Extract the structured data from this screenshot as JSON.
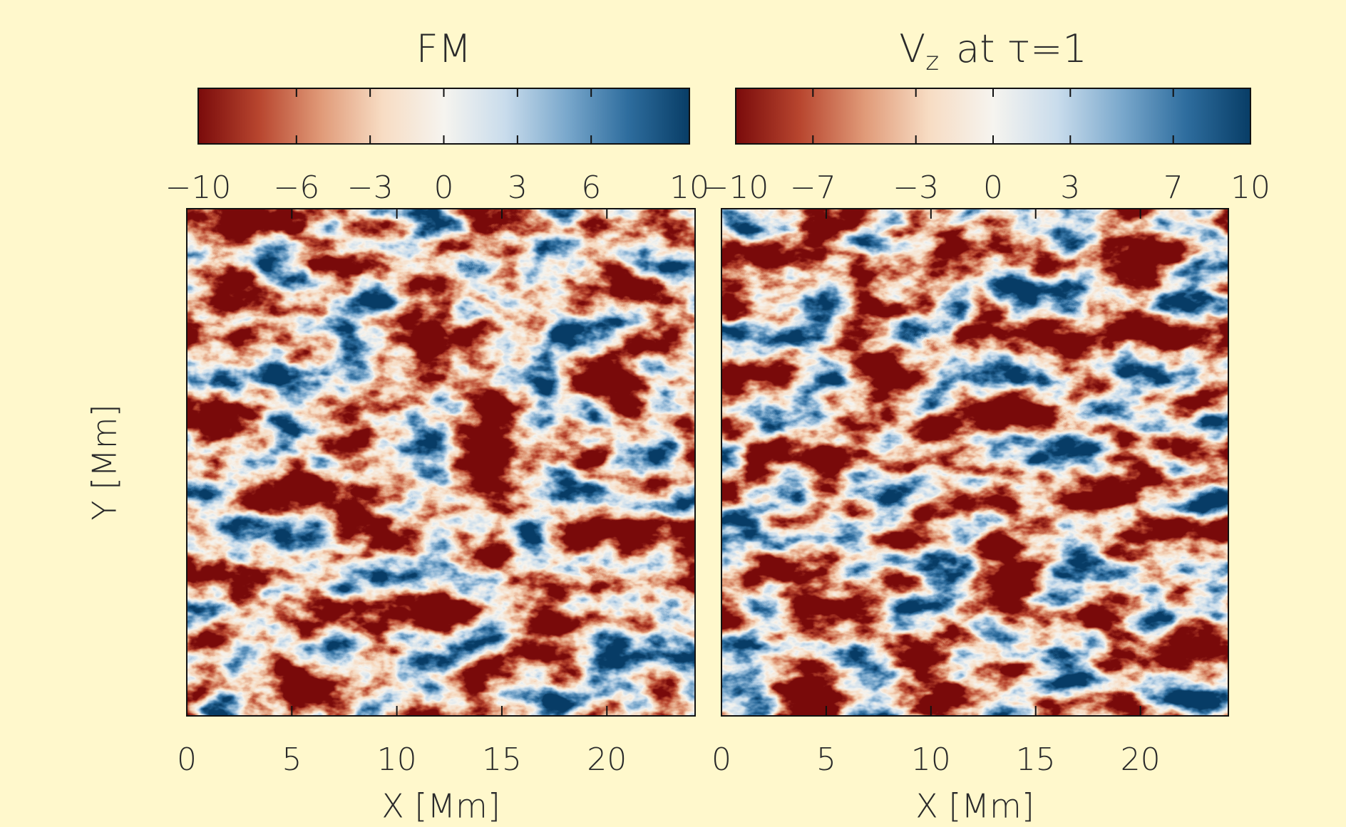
{
  "chart_data": [
    {
      "type": "heatmap",
      "title": {
        "text": "FM"
      },
      "xlabel": "X [Mm]",
      "ylabel": "Y [Mm]",
      "xlim": [
        0,
        24.2
      ],
      "xticks": [
        0,
        5,
        10,
        15,
        20
      ],
      "colorbar": {
        "lim": [
          -10,
          10
        ],
        "ticks": [
          {
            "value": -10,
            "label": "−10"
          },
          {
            "value": -6,
            "label": "−6"
          },
          {
            "value": -3,
            "label": "−3"
          },
          0,
          3,
          6,
          10
        ]
      },
      "colormap": [
        "#7a0b0b",
        "#b8462f",
        "#e09a78",
        "#f7dcc3",
        "#f6f4ef",
        "#c9dcec",
        "#7aa8cc",
        "#2e6d9e",
        "#083d66"
      ]
    },
    {
      "type": "heatmap",
      "title": {
        "text": "V",
        "subscript": "z",
        "suffix": "at τ=1"
      },
      "xlabel": "X [Mm]",
      "xlim": [
        0,
        24.2
      ],
      "xticks": [
        0,
        5,
        10,
        15,
        20
      ],
      "colorbar": {
        "lim": [
          -10,
          10
        ],
        "ticks": [
          {
            "value": -10,
            "label": "−10"
          },
          {
            "value": -7,
            "label": "−7"
          },
          {
            "value": -3,
            "label": "−3"
          },
          0,
          3,
          7,
          10
        ]
      },
      "colormap": [
        "#7a0b0b",
        "#b8462f",
        "#e09a78",
        "#f7dcc3",
        "#f6f4ef",
        "#c9dcec",
        "#7aa8cc",
        "#2e6d9e",
        "#083d66"
      ]
    }
  ]
}
